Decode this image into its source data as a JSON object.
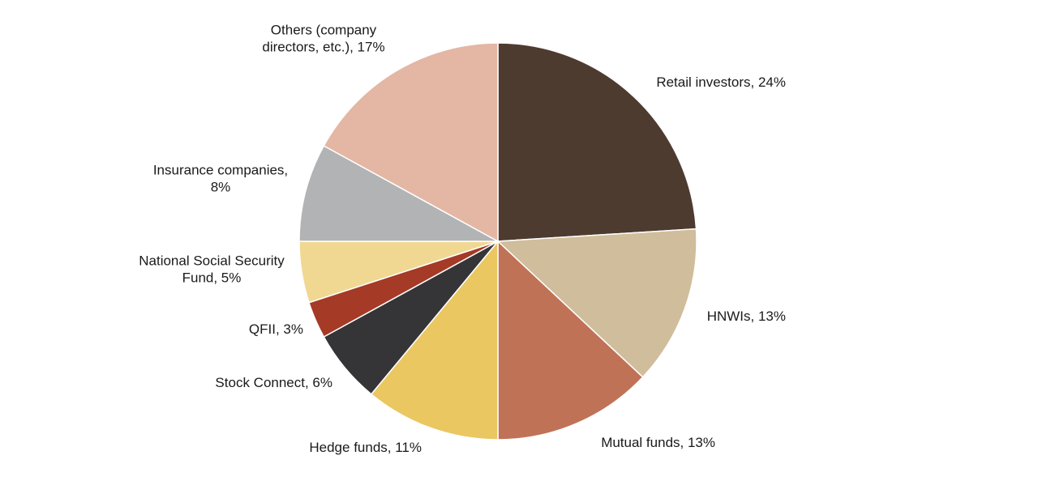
{
  "chart_data": {
    "type": "pie",
    "title": "",
    "start": "12 o'clock",
    "direction": "clockwise",
    "slices": [
      {
        "name": "Retail investors",
        "value": 24,
        "color": "#4e3b30",
        "label": [
          "Retail investors, 24%"
        ]
      },
      {
        "name": "HNWIs",
        "value": 13,
        "color": "#d0bd9b",
        "label": [
          "HNWIs, 13%"
        ]
      },
      {
        "name": "Mutual funds",
        "value": 13,
        "color": "#c07257",
        "label": [
          "Mutual funds, 13%"
        ]
      },
      {
        "name": "Hedge funds",
        "value": 11,
        "color": "#ebc762",
        "label": [
          "Hedge funds, 11%"
        ]
      },
      {
        "name": "Stock Connect",
        "value": 6,
        "color": "#353437",
        "label": [
          "Stock Connect, 6%"
        ]
      },
      {
        "name": "QFII",
        "value": 3,
        "color": "#a53a26",
        "label": [
          "QFII, 3%"
        ]
      },
      {
        "name": "National Social Security Fund",
        "value": 5,
        "color": "#f0d893",
        "label": [
          "National Social Security",
          "Fund, 5%"
        ]
      },
      {
        "name": "Insurance companies",
        "value": 8,
        "color": "#b2b3b4",
        "label": [
          "Insurance companies,",
          "8%"
        ]
      },
      {
        "name": "Others (company directors, etc.)",
        "value": 17,
        "color": "#e4b6a4",
        "label": [
          "Others (company",
          "directors, etc.), 17%"
        ]
      }
    ]
  }
}
